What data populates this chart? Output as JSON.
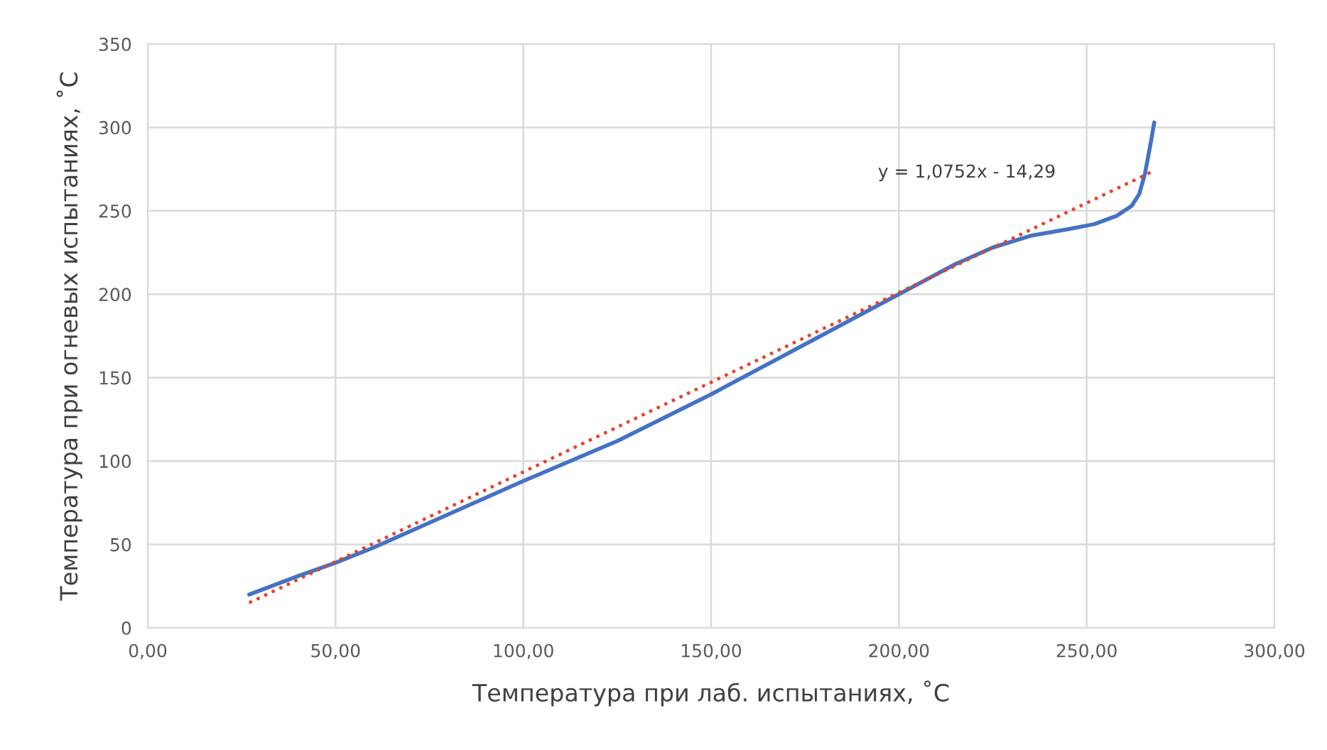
{
  "chart_data": {
    "type": "line",
    "xlabel": "Температура при лаб. испытаниях, ˚C",
    "ylabel": "Температура при огневых испытаниях, ˚C",
    "series": [
      {
        "color": "#4472c4",
        "line_style": "solid",
        "x": [
          27,
          40,
          50,
          60,
          75,
          100,
          125,
          150,
          175,
          200,
          215,
          225,
          235,
          245,
          252,
          258,
          262,
          264,
          265.5,
          267,
          268
        ],
        "values": [
          20,
          31,
          39,
          48,
          63,
          88,
          112,
          140,
          170,
          200,
          218,
          228,
          235,
          239,
          242,
          247,
          253,
          260,
          272,
          290,
          303
        ]
      },
      {
        "color": "#e8402a",
        "line_style": "dotted",
        "x": [
          27,
          267
        ],
        "values": [
          15,
          273
        ]
      }
    ],
    "annotations": [
      "y = 1,0752x - 14,29"
    ],
    "xlim": [
      0,
      300
    ],
    "xticks": [
      {
        "value": 0,
        "label": "0,00"
      },
      {
        "value": 50,
        "label": "50,00"
      },
      {
        "value": 100,
        "label": "100,00"
      },
      {
        "value": 150,
        "label": "150,00"
      },
      {
        "value": 200,
        "label": "200,00"
      },
      {
        "value": 250,
        "label": "250,00"
      },
      {
        "value": 300,
        "label": "300,00"
      }
    ],
    "ylim": [
      0,
      350
    ],
    "yticks": [
      0,
      50,
      100,
      150,
      200,
      250,
      300,
      350
    ],
    "grid": true,
    "marker": "none"
  }
}
